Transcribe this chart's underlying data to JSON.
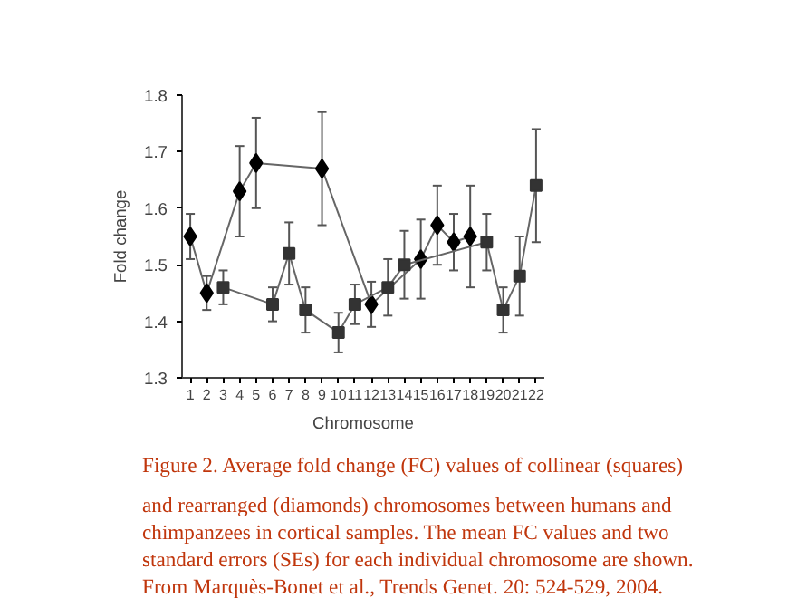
{
  "chart_data": {
    "type": "line",
    "xlabel": "Chromosome",
    "ylabel": "Fold change",
    "xlim": [
      0.5,
      22.5
    ],
    "xticks": [
      1,
      2,
      3,
      4,
      5,
      6,
      7,
      8,
      9,
      10,
      11,
      12,
      13,
      14,
      15,
      16,
      17,
      18,
      19,
      20,
      21,
      22
    ],
    "ylim": [
      1.3,
      1.8
    ],
    "yticks": [
      {
        "value": 1.3,
        "label": "1.3"
      },
      {
        "value": 1.4,
        "label": "1.4"
      },
      {
        "value": 1.5,
        "label": "1.5"
      },
      {
        "value": 1.6,
        "label": "1.6"
      },
      {
        "value": 1.7,
        "label": "1.7"
      },
      {
        "value": 1.8,
        "label": "1.8"
      }
    ],
    "grid": false,
    "line_style": "solid",
    "series": [
      {
        "color": "#000000",
        "marker": "diamond",
        "x": [
          1,
          2,
          4,
          5,
          9,
          12,
          15,
          16,
          17,
          18
        ],
        "values": [
          1.55,
          1.45,
          1.63,
          1.68,
          1.67,
          1.43,
          1.51,
          1.57,
          1.54,
          1.55
        ],
        "errors": [
          0.04,
          0.03,
          0.08,
          0.08,
          0.1,
          0.04,
          0.07,
          0.07,
          0.05,
          0.09
        ]
      },
      {
        "color": "#333333",
        "marker": "square",
        "x": [
          3,
          6,
          7,
          8,
          10,
          11,
          13,
          14,
          19,
          20,
          21,
          22
        ],
        "values": [
          1.46,
          1.43,
          1.52,
          1.42,
          1.38,
          1.43,
          1.46,
          1.5,
          1.54,
          1.42,
          1.48,
          1.64
        ],
        "errors": [
          0.03,
          0.03,
          0.055,
          0.04,
          0.035,
          0.035,
          0.05,
          0.06,
          0.05,
          0.04,
          0.07,
          0.1
        ]
      }
    ],
    "annotations": [
      "Figure 2. Average fold change (FC) values of collinear (squares)",
      "and rearranged (diamonds) chromosomes between humans and",
      "chimpanzees in cortical samples.  The mean FC values and two",
      "standard errors (SEs) for each individual chromosome are shown.",
      "From Marquès-Bonet et al., Trends Genet. 20: 524-529, 2004."
    ]
  }
}
